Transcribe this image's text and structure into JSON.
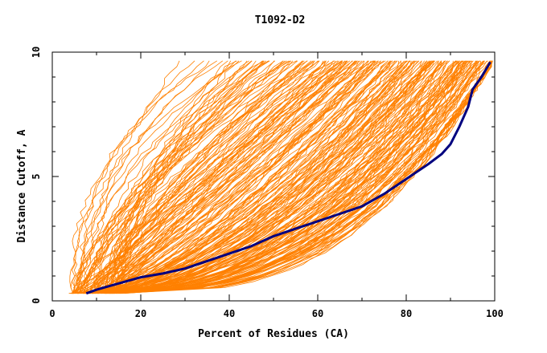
{
  "colors": {
    "background": "#ffffff",
    "bundle": "#ff8000",
    "highlight": "#00007f",
    "axis": "#000000"
  },
  "chart_data": {
    "type": "line",
    "title": "T1092-D2",
    "xlabel": "Percent of Residues (CA)",
    "ylabel": "Distance Cutoff, A",
    "xlim": [
      0,
      100
    ],
    "ylim": [
      0,
      10
    ],
    "x_ticks": [
      0,
      20,
      40,
      60,
      80,
      100
    ],
    "y_ticks": [
      0,
      5,
      10
    ],
    "x_tick_labels": [
      "0",
      "20",
      "40",
      "60",
      "80",
      "100"
    ],
    "y_tick_labels": [
      "0",
      "5",
      "10"
    ],
    "grid": false,
    "legend": "none",
    "bundle_count": 240,
    "highlight_series": {
      "points": [
        [
          7.7,
          0.3
        ],
        [
          10,
          0.45
        ],
        [
          15,
          0.7
        ],
        [
          20,
          0.95
        ],
        [
          25,
          1.1
        ],
        [
          30,
          1.3
        ],
        [
          35,
          1.6
        ],
        [
          40,
          1.9
        ],
        [
          45,
          2.2
        ],
        [
          50,
          2.6
        ],
        [
          55,
          2.9
        ],
        [
          60,
          3.2
        ],
        [
          65,
          3.5
        ],
        [
          70,
          3.8
        ],
        [
          75,
          4.3
        ],
        [
          80,
          4.9
        ],
        [
          85,
          5.5
        ],
        [
          88,
          5.9
        ],
        [
          90,
          6.3
        ],
        [
          92,
          7.0
        ],
        [
          94,
          7.8
        ],
        [
          95,
          8.5
        ],
        [
          97,
          9.0
        ],
        [
          99,
          9.6
        ]
      ]
    }
  }
}
